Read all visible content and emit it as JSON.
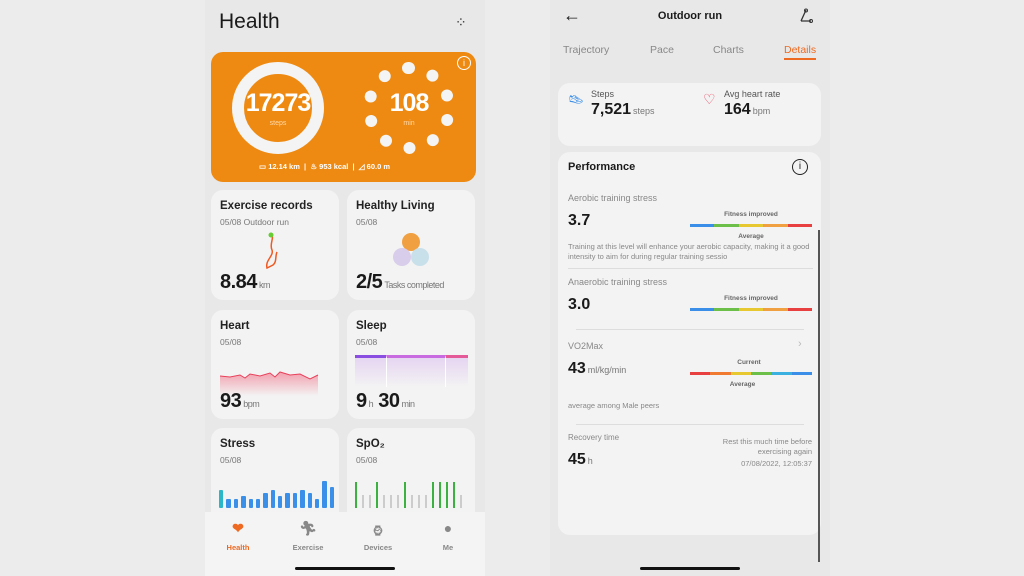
{
  "left": {
    "title": "Health",
    "summary": {
      "steps": "17273",
      "steps_unit": "steps",
      "minutes": "108",
      "minutes_unit": "min",
      "distance": "12.14 km",
      "calories": "953 kcal",
      "elevation": "60.0 m",
      "accent": "#ee8a12"
    },
    "cards": {
      "exercise": {
        "title": "Exercise records",
        "date": "05/08 Outdoor run",
        "value": "8.84",
        "unit": "km"
      },
      "living": {
        "title": "Healthy Living",
        "date": "05/08",
        "value": "2/5",
        "unit": "Tasks completed"
      },
      "heart": {
        "title": "Heart",
        "date": "05/08",
        "value": "93",
        "unit": "bpm"
      },
      "sleep": {
        "title": "Sleep",
        "date": "05/08",
        "hours": "9",
        "h": "h",
        "minutes": "30",
        "min": "min"
      },
      "stress": {
        "title": "Stress",
        "date": "05/08",
        "bars": [
          6,
          3,
          3,
          4,
          3,
          3,
          5,
          6,
          4,
          5,
          5,
          6,
          5,
          3,
          9,
          7
        ]
      },
      "spo2": {
        "title": "SpO₂",
        "date": "05/08",
        "bars": [
          1,
          0,
          0,
          1,
          0,
          0,
          0,
          1,
          0,
          0,
          0,
          1,
          1,
          1,
          1,
          0
        ]
      }
    },
    "nav": [
      {
        "label": "Health",
        "icon": "heart-icon"
      },
      {
        "label": "Exercise",
        "icon": "runner-icon"
      },
      {
        "label": "Devices",
        "icon": "watch-icon"
      },
      {
        "label": "Me",
        "icon": "user-icon"
      }
    ]
  },
  "right": {
    "header": {
      "title": "Outdoor run"
    },
    "tabs": [
      "Trajectory",
      "Pace",
      "Charts",
      "Details"
    ],
    "active_tab": "Details",
    "steps": {
      "label": "Steps",
      "value": "7,521",
      "unit": "steps"
    },
    "heart": {
      "label": "Avg heart rate",
      "value": "164",
      "unit": "bpm"
    },
    "performance": {
      "title": "Performance",
      "aerobic": {
        "label": "Aerobic training stress",
        "value": "3.7",
        "top": "Fitness improved",
        "bottom": "Average",
        "desc": "Training at this level will enhance your aerobic capacity, making it a good intensity to aim for during regular training sessio"
      },
      "anaerobic": {
        "label": "Anaerobic training stress",
        "value": "3.0",
        "top": "Fitness improved"
      },
      "vo2": {
        "label": "VO2Max",
        "value": "43",
        "unit": "ml/kg/min",
        "top": "Current",
        "bottom": "Average",
        "note": "average among Male peers"
      },
      "recovery": {
        "label": "Recovery time",
        "value": "45",
        "unit": "h",
        "note1": "Rest this much time before",
        "note2": "exercising again",
        "timestamp": "07/08/2022, 12:05:37"
      }
    }
  }
}
